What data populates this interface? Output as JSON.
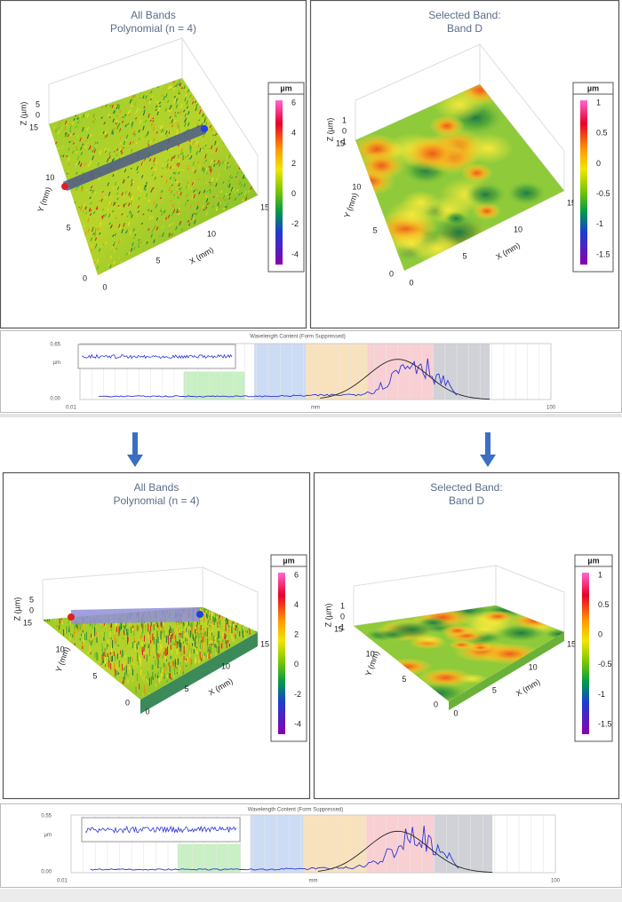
{
  "sections": [
    {
      "panels": [
        {
          "title": [
            "All Bands",
            "Polynomial (n = 4)"
          ],
          "legend": {
            "unit": "µm",
            "labels": [
              "6",
              "4",
              "2",
              "0",
              "-2",
              "-4"
            ]
          },
          "axis_titles": {
            "x": "X (mm)",
            "y": "Y (mm)",
            "z": "Z (µm)"
          },
          "tick_labels": {
            "x": [
              "0",
              "5",
              "10",
              "15"
            ],
            "y": [
              "15",
              "10",
              "5",
              "0"
            ],
            "z": [
              "5",
              "0"
            ]
          }
        },
        {
          "title": [
            "Selected Band:",
            "Band D"
          ],
          "legend": {
            "unit": "µm",
            "labels": [
              "1",
              "0.5",
              "0",
              "-0.5",
              "-1",
              "-1.5"
            ]
          },
          "axis_titles": {
            "x": "X (mm)",
            "y": "Y (mm)",
            "z": "Z (µm)"
          },
          "tick_labels": {
            "x": [
              "0",
              "5",
              "10",
              "15"
            ],
            "y": [
              "15",
              "10",
              "5",
              "0"
            ],
            "z": [
              "1",
              "0",
              "-1"
            ]
          }
        }
      ],
      "spectrum": {
        "title": "Wavelength Content (Form Suppressed)",
        "y_labels": [
          "0.65",
          "µm",
          "0.00"
        ],
        "x_labels": [
          "0.01",
          "mm",
          "100"
        ]
      }
    },
    {
      "panels": [
        {
          "title": [
            "All Bands",
            "Polynomial (n = 4)"
          ],
          "legend": {
            "unit": "µm",
            "labels": [
              "6",
              "4",
              "2",
              "0",
              "-2",
              "-4"
            ]
          },
          "axis_titles": {
            "x": "X (mm)",
            "y": "Y (mm)",
            "z": "Z (µm)"
          },
          "tick_labels": {
            "x": [
              "0",
              "5",
              "10",
              "15"
            ],
            "y": [
              "15",
              "10",
              "5",
              "0"
            ],
            "z": [
              "5",
              "0"
            ]
          }
        },
        {
          "title": [
            "Selected Band:",
            "Band D"
          ],
          "legend": {
            "unit": "µm",
            "labels": [
              "1",
              "0.5",
              "0",
              "-0.5",
              "-1",
              "-1.5"
            ]
          },
          "axis_titles": {
            "x": "X (mm)",
            "y": "Y (mm)",
            "z": "Z (µm)"
          },
          "tick_labels": {
            "x": [
              "0",
              "5",
              "10",
              "15"
            ],
            "y": [
              "15",
              "10",
              "5",
              "0"
            ],
            "z": [
              "1",
              "0",
              "-1"
            ]
          }
        }
      ],
      "spectrum": {
        "title": "Wavelength Content (Form Suppressed)",
        "y_labels": [
          "0.55",
          "µm",
          "0.00"
        ],
        "x_labels": [
          "0.01",
          "mm",
          "100"
        ]
      }
    }
  ]
}
